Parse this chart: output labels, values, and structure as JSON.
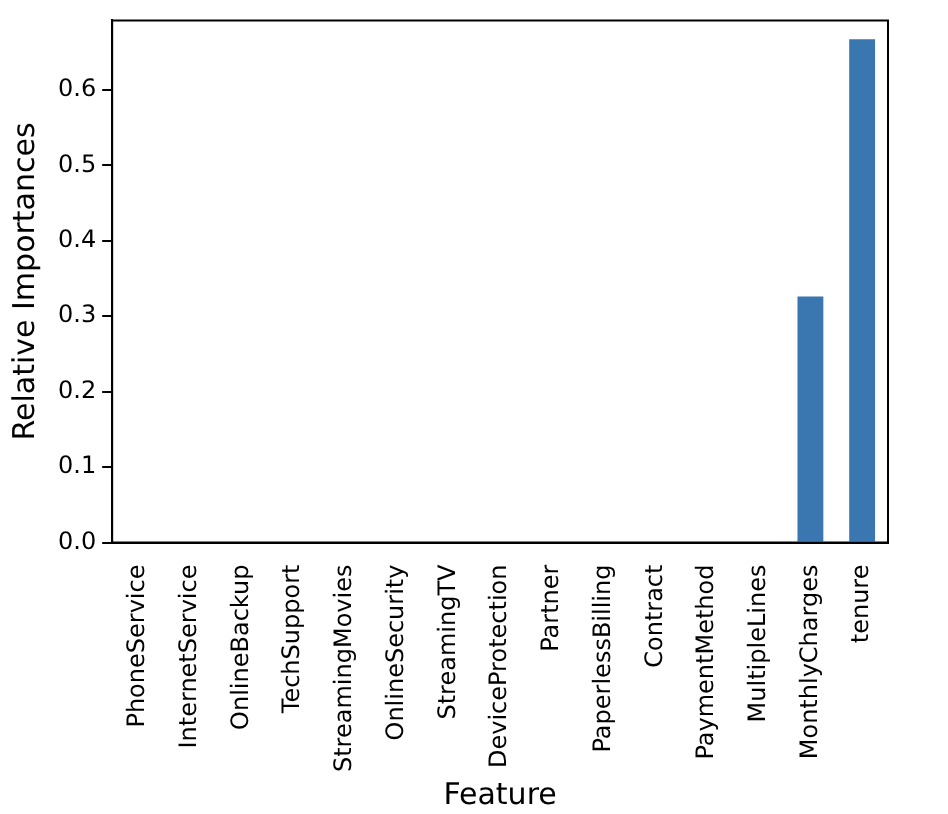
{
  "chart_data": {
    "type": "bar",
    "xlabel": "Feature",
    "ylabel": "Relative Importances",
    "categories": [
      "PhoneService",
      "InternetService",
      "OnlineBackup",
      "TechSupport",
      "StreamingMovies",
      "OnlineSecurity",
      "StreamingTV",
      "DeviceProtection",
      "Partner",
      "PaperlessBilling",
      "Contract",
      "PaymentMethod",
      "MultipleLines",
      "MonthlyCharges",
      "tenure"
    ],
    "values": [
      0,
      0,
      0,
      0,
      0,
      0,
      0,
      0,
      0,
      0,
      0,
      0,
      0,
      0.326,
      0.667
    ],
    "color": "#3a76af",
    "ylim": [
      0,
      0.692
    ],
    "yticks": [
      {
        "value": 0,
        "label": "0.0"
      },
      {
        "value": 0.1,
        "label": "0.1"
      },
      {
        "value": 0.2,
        "label": "0.2"
      },
      {
        "value": 0.3,
        "label": "0.3"
      },
      {
        "value": 0.4,
        "label": "0.4"
      },
      {
        "value": 0.5,
        "label": "0.5"
      },
      {
        "value": 0.6,
        "label": "0.6"
      }
    ],
    "grid": false,
    "legend": false
  }
}
